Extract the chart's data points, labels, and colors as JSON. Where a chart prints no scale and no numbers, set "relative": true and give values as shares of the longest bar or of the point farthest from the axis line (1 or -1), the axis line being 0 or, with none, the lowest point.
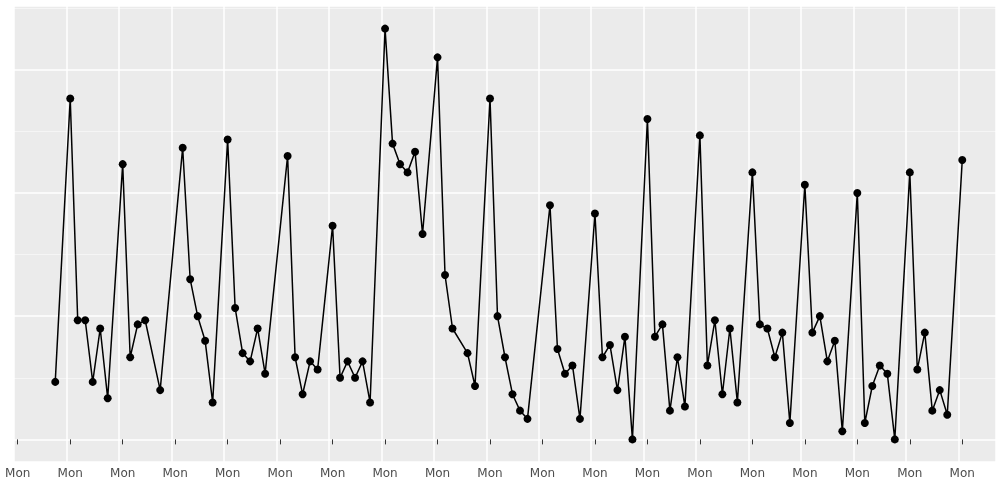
{
  "chart_data": {
    "type": "line",
    "relative": true,
    "grid": true,
    "marker": "circle",
    "line_style": "solid",
    "categories": [
      "Mon",
      null,
      null,
      null,
      null,
      null,
      null,
      "Mon",
      null,
      null,
      null,
      null,
      null,
      null,
      "Mon",
      null,
      null,
      null,
      null,
      null,
      null,
      "Mon",
      null,
      null,
      null,
      null,
      null,
      null,
      "Mon",
      null,
      null,
      null,
      null,
      null,
      null,
      "Mon",
      null,
      null,
      null,
      null,
      null,
      null,
      "Mon",
      null,
      null,
      null,
      null,
      null,
      null,
      "Mon",
      null,
      null,
      null,
      null,
      null,
      null,
      "Mon",
      null,
      null,
      null,
      null,
      null,
      null,
      "Mon",
      null,
      null,
      null,
      null,
      null,
      null,
      "Mon",
      null,
      null,
      null,
      null,
      null,
      null,
      "Mon",
      null,
      null,
      null,
      null,
      null,
      null,
      "Mon",
      null,
      null,
      null,
      null,
      null,
      null,
      "Mon",
      null,
      null,
      null,
      null,
      null,
      null,
      "Mon",
      null,
      null,
      null,
      null,
      null,
      null,
      "Mon",
      null,
      null,
      null,
      null,
      null,
      null,
      "Mon",
      null,
      null,
      null,
      null,
      null,
      null,
      "Mon",
      null,
      null,
      null,
      null,
      null,
      null,
      "Mon",
      null,
      null,
      null,
      null
    ],
    "series": [
      {
        "color": "#000000",
        "values": [
          null,
          null,
          null,
          null,
          null,
          0.14,
          null,
          0.83,
          0.29,
          0.29,
          0.14,
          0.27,
          0.1,
          null,
          0.67,
          0.2,
          0.28,
          0.29,
          null,
          0.12,
          null,
          null,
          0.71,
          0.39,
          0.3,
          0.24,
          0.09,
          null,
          0.73,
          0.32,
          0.21,
          0.19,
          0.27,
          0.16,
          null,
          null,
          0.69,
          0.2,
          0.11,
          0.19,
          0.17,
          null,
          0.52,
          0.15,
          0.19,
          0.15,
          0.19,
          0.09,
          null,
          1,
          0.72,
          0.67,
          0.65,
          0.7,
          0.5,
          null,
          0.93,
          0.4,
          0.27,
          null,
          0.21,
          0.13,
          null,
          0.83,
          0.3,
          0.2,
          0.11,
          0.07,
          0.05,
          null,
          null,
          0.57,
          0.22,
          0.16,
          0.18,
          0.05,
          null,
          0.55,
          0.2,
          0.23,
          0.12,
          0.25,
          0,
          null,
          0.78,
          0.25,
          0.28,
          0.07,
          0.2,
          0.08,
          null,
          0.74,
          0.18,
          0.29,
          0.11,
          0.27,
          0.09,
          null,
          0.65,
          0.28,
          0.27,
          0.2,
          0.26,
          0.04,
          null,
          0.62,
          0.26,
          0.3,
          0.19,
          0.24,
          0.02,
          null,
          0.6,
          0.04,
          0.13,
          0.18,
          0.16,
          0,
          null,
          0.65,
          0.17,
          0.26,
          0.07,
          0.12,
          0.06,
          null,
          0.68,
          null,
          null,
          null,
          null
        ]
      }
    ]
  }
}
